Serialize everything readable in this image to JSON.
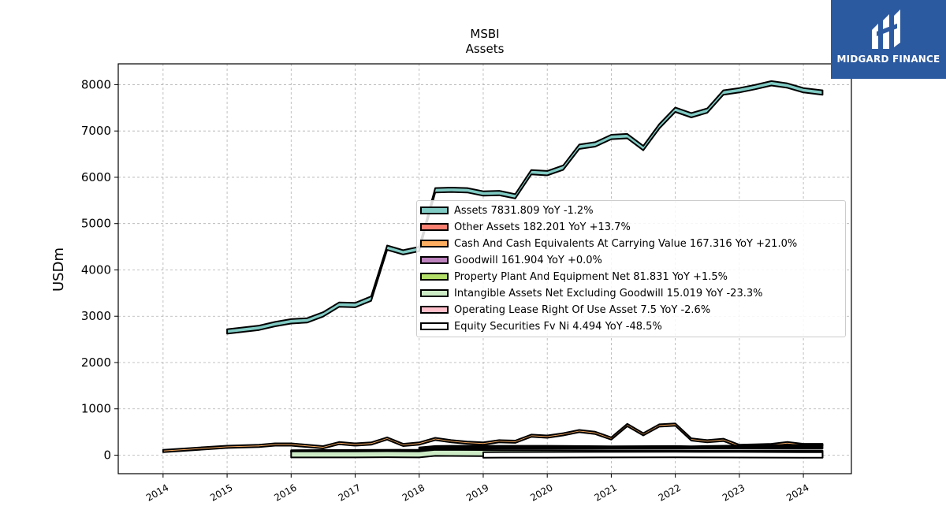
{
  "logo": {
    "text": "MIDGARD FINANCE",
    "icon": "midgard-logo-icon",
    "color": "#2c5aa0"
  },
  "chart_data": {
    "type": "area",
    "title": "MSBI",
    "subtitle": "Assets",
    "xlabel": "",
    "ylabel": "USDm",
    "ylim": [
      -400,
      8450
    ],
    "xlim": [
      2013.3,
      2024.75
    ],
    "x_ticks": [
      "2014",
      "2015",
      "2016",
      "2017",
      "2018",
      "2019",
      "2020",
      "2021",
      "2022",
      "2023",
      "2024"
    ],
    "y_ticks": [
      "0",
      "1000",
      "2000",
      "3000",
      "4000",
      "5000",
      "6000",
      "7000",
      "8000"
    ],
    "grid": true,
    "legend_position": "center-right",
    "legend": [
      "Assets  7831.809 YoY -1.2%",
      "Other Assets  182.201 YoY +13.7%",
      "Cash And Cash Equivalents At Carrying Value  167.316 YoY +21.0%",
      "Goodwill  161.904 YoY +0.0%",
      "Property Plant And Equipment Net  81.831 YoY +1.5%",
      "Intangible Assets Net Excluding Goodwill  15.019 YoY -23.3%",
      "Operating Lease Right Of Use Asset  7.5 YoY -2.6%",
      "Equity Securities Fv Ni  4.494 YoY -48.5%"
    ],
    "series": [
      {
        "name": "Assets",
        "color": "#80cbc4",
        "thickness": 95,
        "x": [
          2015.0,
          2015.5,
          2015.75,
          2016.0,
          2016.25,
          2016.5,
          2016.75,
          2017.0,
          2017.25,
          2017.5,
          2017.75,
          2018.0,
          2018.25,
          2018.5,
          2018.75,
          2019.0,
          2019.25,
          2019.5,
          2019.75,
          2020.0,
          2020.25,
          2020.5,
          2020.75,
          2021.0,
          2021.25,
          2021.5,
          2021.75,
          2022.0,
          2022.25,
          2022.5,
          2022.75,
          2023.0,
          2023.25,
          2023.5,
          2023.75,
          2024.0,
          2024.3
        ],
        "y": [
          2670,
          2750,
          2830,
          2890,
          2910,
          3040,
          3250,
          3240,
          3380,
          4480,
          4380,
          4450,
          5720,
          5730,
          5720,
          5650,
          5660,
          5590,
          6110,
          6090,
          6210,
          6660,
          6710,
          6870,
          6890,
          6630,
          7100,
          7460,
          7340,
          7440,
          7830,
          7880,
          7950,
          8030,
          7980,
          7880,
          7830
        ]
      },
      {
        "name": "Cash And Cash Equivalents At Carrying Value",
        "color": "#fdae61",
        "thickness": 50,
        "x": [
          2014.0,
          2015.0,
          2015.5,
          2015.75,
          2016.0,
          2016.5,
          2016.75,
          2017.0,
          2017.25,
          2017.5,
          2017.75,
          2018.0,
          2018.25,
          2018.5,
          2018.75,
          2019.0,
          2019.25,
          2019.5,
          2019.75,
          2020.0,
          2020.25,
          2020.5,
          2020.75,
          2021.0,
          2021.25,
          2021.5,
          2021.75,
          2022.0,
          2022.25,
          2022.5,
          2022.75,
          2023.0,
          2023.25,
          2023.5,
          2023.75,
          2024.0,
          2024.3
        ],
        "y": [
          90,
          180,
          200,
          230,
          230,
          170,
          260,
          230,
          250,
          360,
          220,
          250,
          350,
          300,
          270,
          250,
          300,
          290,
          420,
          400,
          450,
          520,
          480,
          360,
          650,
          450,
          640,
          660,
          340,
          300,
          330,
          200,
          210,
          220,
          260,
          220,
          220
        ]
      },
      {
        "name": "Other Assets",
        "color": "#fa8072",
        "thickness": 34,
        "x": [
          2018.0,
          2018.25,
          2018.5,
          2019.0,
          2020.0,
          2021.0,
          2022.0,
          2022.25,
          2023.0,
          2023.5,
          2024.0,
          2024.3
        ],
        "y": [
          150,
          180,
          185,
          185,
          185,
          175,
          180,
          175,
          190,
          200,
          210,
          215
        ]
      },
      {
        "name": "Goodwill",
        "color": "#bc82bd",
        "thickness": 34,
        "x": [
          2016.0,
          2017.0,
          2018.0,
          2018.25,
          2019.0,
          2020.0,
          2021.0,
          2022.0,
          2023.0,
          2024.0,
          2024.3
        ],
        "y": [
          90,
          95,
          100,
          160,
          160,
          160,
          160,
          160,
          160,
          160,
          160
        ]
      },
      {
        "name": "Property Plant And Equipment Net",
        "color": "#b3de69",
        "thickness": 30,
        "x": [
          2016.0,
          2017.0,
          2018.0,
          2019.0,
          2020.0,
          2021.0,
          2022.0,
          2023.0,
          2024.0,
          2024.3
        ],
        "y": [
          80,
          82,
          85,
          85,
          83,
          82,
          82,
          81,
          82,
          82
        ]
      },
      {
        "name": "Intangible Assets Net Excluding Goodwill",
        "color": "#ccebc5",
        "thickness": 130,
        "x": [
          2016.0,
          2017.0,
          2017.5,
          2018.0,
          2018.25,
          2019.0,
          2020.0,
          2021.0,
          2022.0,
          2023.0,
          2024.0,
          2024.3
        ],
        "y": [
          15,
          15,
          20,
          15,
          50,
          45,
          40,
          35,
          30,
          25,
          20,
          15
        ]
      },
      {
        "name": "Operating Lease Right Of Use Asset",
        "color": "#ffc0cb",
        "thickness": 34,
        "x": [
          2019.0,
          2020.0,
          2021.0,
          2022.0,
          2023.0,
          2024.0,
          2024.3
        ],
        "y": [
          8,
          8,
          8,
          8,
          8,
          7.5,
          7.5
        ]
      },
      {
        "name": "Equity Securities Fv Ni",
        "color": "#ffffff",
        "thickness": 120,
        "x": [
          2019.0,
          2020.0,
          2021.0,
          2022.0,
          2023.0,
          2024.0,
          2024.3
        ],
        "y": [
          5,
          8,
          10,
          12,
          9,
          5,
          4.5
        ]
      }
    ]
  }
}
